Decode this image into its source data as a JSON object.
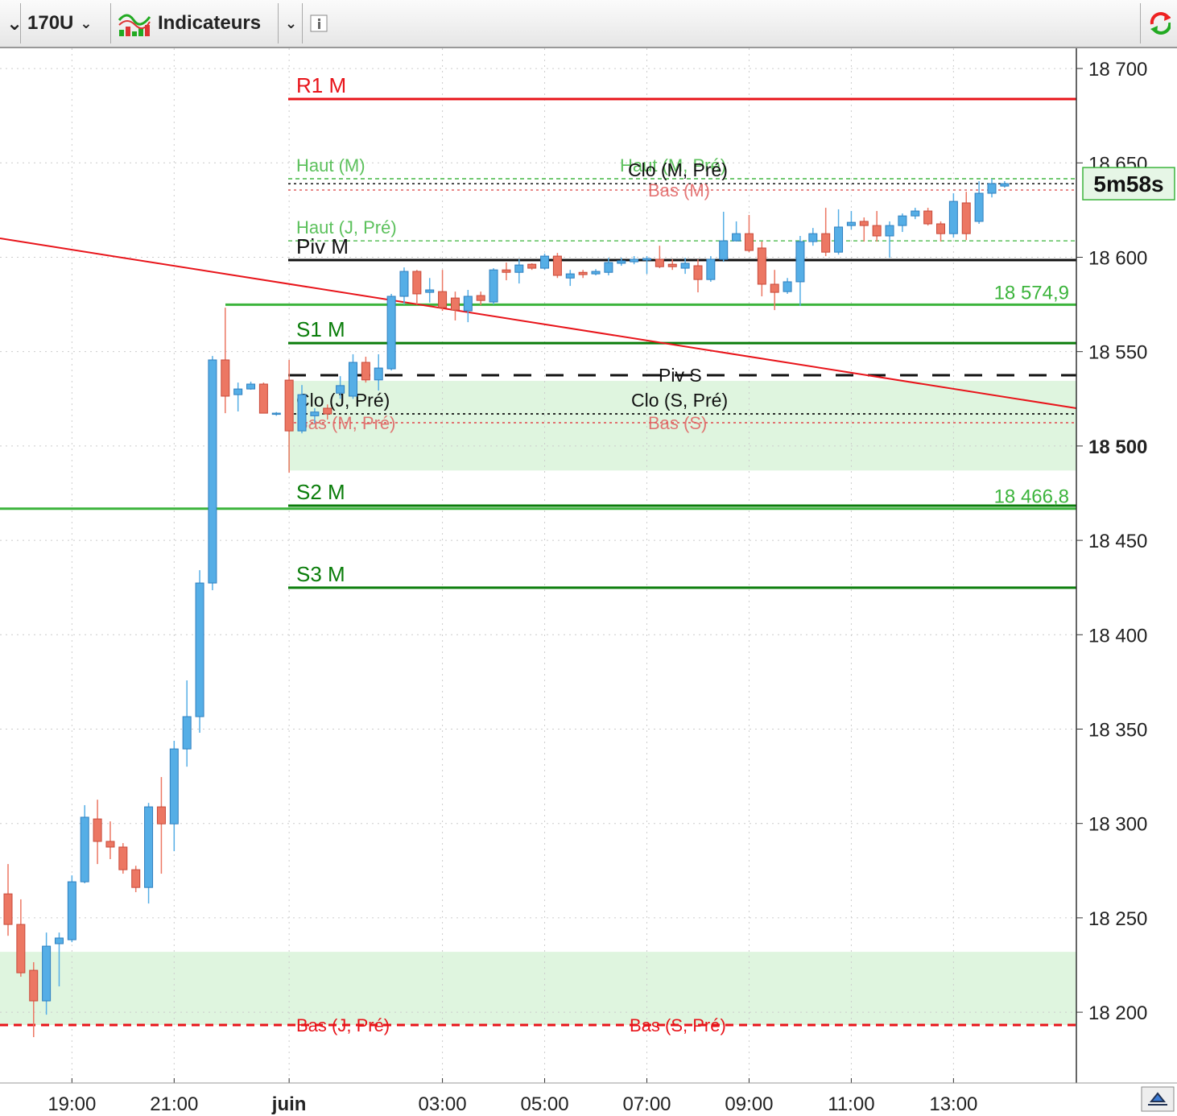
{
  "toolbar": {
    "interval": "170U",
    "indicators": "Indicateurs"
  },
  "chart_data": {
    "type": "candlestick",
    "categories": [
      null,
      null,
      null,
      null,
      null,
      "19:00",
      null,
      null,
      null,
      null,
      null,
      null,
      null,
      "21:00",
      null,
      null,
      null,
      null,
      null,
      null,
      null,
      null,
      "juin",
      null,
      null,
      null,
      null,
      null,
      null,
      null,
      null,
      null,
      null,
      null,
      "03:00",
      null,
      null,
      null,
      null,
      null,
      null,
      null,
      "05:00",
      null,
      null,
      null,
      null,
      null,
      null,
      null,
      "07:00",
      null,
      null,
      null,
      null,
      null,
      null,
      null,
      "09:00",
      null,
      null,
      null,
      null,
      null,
      null,
      null,
      "11:00",
      null,
      null,
      null,
      null,
      null,
      null,
      null,
      "13:00",
      null,
      null,
      null,
      null
    ],
    "open": [
      18262.7,
      18246.5,
      18222.2,
      18206,
      18236.3,
      18238.4,
      18269.1,
      18302.4,
      18290.5,
      18287.5,
      18275.5,
      18266.1,
      18308.8,
      18299.8,
      18339.5,
      18356.6,
      18427.4,
      18545.6,
      18527.2,
      18530.2,
      18532.8,
      18517,
      18534.9,
      18508,
      18516,
      18520,
      18528,
      18526.4,
      18544.3,
      18535,
      18540.9,
      18579.3,
      18592.5,
      18581.4,
      18581.8,
      18578.4,
      18571.6,
      18579.7,
      18576.3,
      18593.3,
      18592,
      18596.3,
      18594.2,
      18600.6,
      18589,
      18592,
      18591.2,
      18592,
      18596.8,
      18597.6,
      18598.5,
      18598.9,
      18596.3,
      18594.2,
      18595.5,
      18588.2,
      18598.9,
      18608.7,
      18612.5,
      18604.9,
      18585.7,
      18581.8,
      18587,
      18608.3,
      18612.5,
      18602.7,
      18616.8,
      18619,
      18616.8,
      18611.3,
      18616.8,
      18621.9,
      18624.5,
      18617.7,
      18612.5,
      18628.8,
      18619,
      18633.9,
      18637.7
    ],
    "high": [
      18278.5,
      18259.8,
      18226.5,
      18242.2,
      18242.2,
      18272.5,
      18309.7,
      18312.6,
      18301.1,
      18289.6,
      18277.6,
      18310.9,
      18324.6,
      18343.8,
      18375.8,
      18434.2,
      18547.7,
      18573.3,
      18533.6,
      18534.1,
      18533.6,
      18518,
      18545.6,
      18532.3,
      18520,
      18522,
      18537,
      18548.6,
      18547.3,
      18548.6,
      18580.6,
      18594.6,
      18593.3,
      18589,
      18593.3,
      18581.8,
      18582.7,
      18581.8,
      18594.2,
      18597.2,
      18598.9,
      18596.8,
      18601.9,
      18602.3,
      18593.3,
      18593.3,
      18593.7,
      18599.7,
      18599.7,
      18600.6,
      18600.6,
      18606.1,
      18598.9,
      18599.7,
      18598.9,
      18600.6,
      18624.1,
      18619,
      18622.4,
      18608.3,
      18593.3,
      18589,
      18611.3,
      18615.5,
      18626.2,
      18625.4,
      18624.5,
      18621.1,
      18624.5,
      18619,
      18623.2,
      18626.2,
      18626.2,
      18619,
      18633.9,
      18634.7,
      18640.3,
      18641.6,
      18640.3
    ],
    "low": [
      18240.5,
      18218.8,
      18186.8,
      18198.7,
      18213.7,
      18237.1,
      18268.3,
      18278.5,
      18281.1,
      18273.4,
      18263.6,
      18257.6,
      18273.4,
      18285.3,
      18330.1,
      18348.1,
      18423.6,
      18517.4,
      18518.3,
      18529.8,
      18517.4,
      18516,
      18485.8,
      18506.7,
      18512,
      18514,
      18525,
      18525,
      18533.6,
      18529.4,
      18540,
      18575,
      18575,
      18576,
      18571.6,
      18566.5,
      18565.6,
      18574.6,
      18575,
      18587.8,
      18586.1,
      18593.3,
      18593.3,
      18589,
      18584.8,
      18589,
      18590.4,
      18590.4,
      18595.5,
      18596.3,
      18591.2,
      18594.2,
      18593.3,
      18591.2,
      18581.4,
      18587,
      18597.6,
      18608.3,
      18602.7,
      18579.3,
      18572,
      18580.6,
      18574.2,
      18606.1,
      18600.6,
      18601.4,
      18614.7,
      18608.3,
      18608.3,
      18599.7,
      18613.4,
      18620.2,
      18616.8,
      18608.3,
      18610.4,
      18609.1,
      18617.7,
      18631.7,
      18636.9
    ],
    "close": [
      18246.5,
      18220.9,
      18206,
      18235,
      18239.3,
      18269.1,
      18303.3,
      18290.5,
      18287.5,
      18275.5,
      18266.1,
      18308.8,
      18299.8,
      18339.5,
      18356.6,
      18427.4,
      18545.6,
      18526.4,
      18530.2,
      18532.8,
      18517.4,
      18517.4,
      18508,
      18527.2,
      18518,
      18517,
      18532,
      18544.3,
      18535,
      18541.3,
      18579.3,
      18592.5,
      18580.6,
      18582.7,
      18573.3,
      18572,
      18579.3,
      18577.1,
      18593.3,
      18592,
      18595.9,
      18594.2,
      18600.6,
      18590.4,
      18591.2,
      18590.8,
      18592.5,
      18597.2,
      18598.1,
      18598.9,
      18599.3,
      18595,
      18595,
      18596.8,
      18588.2,
      18598.9,
      18608.7,
      18612.5,
      18603.6,
      18585.7,
      18581.4,
      18587,
      18608.3,
      18612.5,
      18602.7,
      18616,
      18618.5,
      18616.8,
      18611.3,
      18616.8,
      18621.9,
      18624.5,
      18617.7,
      18612.5,
      18629.6,
      18612.5,
      18633.9,
      18639,
      18639
    ],
    "up_color": "#55aee6",
    "down_color": "#ec7763",
    "ylim": [
      18162.5,
      18710.7
    ],
    "yticks": [
      {
        "value": 18200,
        "label": "18 200"
      },
      {
        "value": 18250,
        "label": "18 250"
      },
      {
        "value": 18300,
        "label": "18 300"
      },
      {
        "value": 18350,
        "label": "18 350"
      },
      {
        "value": 18400,
        "label": "18 400"
      },
      {
        "value": 18450,
        "label": "18 450"
      },
      {
        "value": 18500,
        "label": "18 500"
      },
      {
        "value": 18550,
        "label": "18 550"
      },
      {
        "value": 18600,
        "label": "18 600"
      },
      {
        "value": 18650,
        "label": "18 650"
      },
      {
        "value": 18700,
        "label": "18 700"
      }
    ],
    "grid": true,
    "zones": [
      {
        "from": 18534.5,
        "to": 18487,
        "color": "#dff5df"
      },
      {
        "from": 18232,
        "to": 18193.2,
        "color": "#dff5df"
      }
    ],
    "trend_line": {
      "color": "#e8141a",
      "values": [
        18610,
        18520
      ]
    },
    "levels": [
      {
        "label": "R1 M",
        "value": 18683.8,
        "color": "#e8141a",
        "style": "solid"
      },
      {
        "label": "Haut (M)",
        "value": 18641.6,
        "color": "#5cc15c",
        "style": "dash"
      },
      {
        "label": "Haut (M, Pré)",
        "value": 18641.6,
        "color": "#5cc15c",
        "style": "dash"
      },
      {
        "label": "Clo (M, Pré)",
        "value": 18639,
        "color": "#111111",
        "style": "dot"
      },
      {
        "label": "Bas (M)",
        "value": 18635.6,
        "color": "#e06060",
        "style": "dot"
      },
      {
        "label": "Haut (J, Pré)",
        "value": 18608.7,
        "color": "#5cc15c",
        "style": "dash"
      },
      {
        "label": "Piv M",
        "value": 18598.5,
        "color": "#111111",
        "style": "solid"
      },
      {
        "label": "18 574,9",
        "value": 18574.9,
        "color": "#3cb43c",
        "style": "solid"
      },
      {
        "label": "S1 M",
        "value": 18554.5,
        "color": "#0a7d0a",
        "style": "solid"
      },
      {
        "label": "Piv S",
        "value": 18537.5,
        "color": "#111111",
        "style": "longdash"
      },
      {
        "label": "Clo (J, Pré)",
        "value": 18517,
        "color": "#111111",
        "style": "dot"
      },
      {
        "label": "Clo (S, Pré)",
        "value": 18517,
        "color": "#111111",
        "style": "dot"
      },
      {
        "label": "Bas (M, Pré)",
        "value": 18512.3,
        "color": "#e06060",
        "style": "dot"
      },
      {
        "label": "Bas (S)",
        "value": 18512.3,
        "color": "#e06060",
        "style": "dot"
      },
      {
        "label": "S2 M",
        "value": 18468.4,
        "color": "#0a7d0a",
        "style": "solid"
      },
      {
        "label": "18 466,8",
        "value": 18466.8,
        "color": "#3cb43c",
        "style": "solid"
      },
      {
        "label": "S3 M",
        "value": 18424.9,
        "color": "#0a7d0a",
        "style": "solid"
      },
      {
        "label": "Bas (J, Pré)",
        "value": 18193.2,
        "color": "#e8141a",
        "style": "bolddash"
      },
      {
        "label": "Bas (S, Pré)",
        "value": 18193.2,
        "color": "#e8141a",
        "style": "bolddash"
      }
    ],
    "countdown": "5m58s",
    "countdown_color": "#3cb43c"
  }
}
